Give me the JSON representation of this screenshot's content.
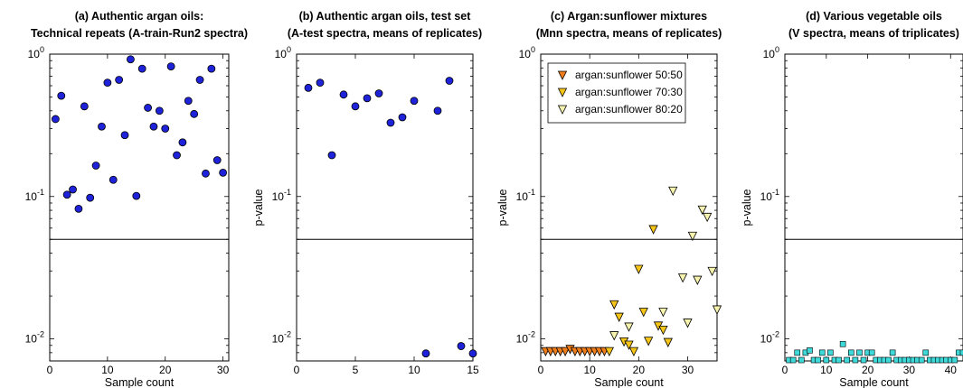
{
  "chart_data": [
    {
      "type": "scatter",
      "title_line1": "(a) Authentic argan oils:",
      "title_line2": "Technical repeats (A-train-Run2 spectra)",
      "xlabel": "Sample count",
      "ylabel": "",
      "xlim": [
        0,
        31
      ],
      "xticks": [
        0,
        10,
        20,
        30
      ],
      "ylim": [
        0.007,
        1
      ],
      "yscale": "log",
      "yticks": [
        {
          "v": 1,
          "label": "10^0"
        },
        {
          "v": 0.1,
          "label": "10^-1"
        },
        {
          "v": 0.01,
          "label": "10^-2"
        }
      ],
      "threshold": 0.05,
      "legend": [],
      "series": [
        {
          "marker": "circle",
          "color": "#1e22d8",
          "x": [
            1,
            2,
            3,
            4,
            5,
            6,
            7,
            8,
            9,
            10,
            11,
            12,
            13,
            14,
            15,
            16,
            17,
            18,
            19,
            20,
            21,
            22,
            23,
            24,
            25,
            26,
            27,
            28,
            29,
            30
          ],
          "y": [
            0.35,
            0.51,
            0.103,
            0.112,
            0.082,
            0.43,
            0.098,
            0.165,
            0.31,
            0.63,
            0.131,
            0.66,
            0.27,
            0.92,
            0.101,
            0.79,
            0.42,
            0.31,
            0.4,
            0.3,
            0.82,
            0.195,
            0.24,
            0.47,
            0.38,
            0.66,
            0.145,
            0.79,
            0.18,
            0.147
          ]
        }
      ]
    },
    {
      "type": "scatter",
      "title_line1": "(b) Authentic argan oils, test set",
      "title_line2": "(A-test spectra, means of replicates)",
      "xlabel": "",
      "ylabel": "p-value",
      "xlim": [
        0,
        15
      ],
      "xticks": [
        0,
        5,
        10,
        15
      ],
      "ylim": [
        0.007,
        1
      ],
      "yscale": "log",
      "yticks": [
        {
          "v": 1,
          "label": "10^0"
        },
        {
          "v": 0.1,
          "label": "10^-1"
        },
        {
          "v": 0.01,
          "label": "10^-2"
        }
      ],
      "threshold": 0.05,
      "legend": [],
      "series": [
        {
          "marker": "circle",
          "color": "#1e22d8",
          "x": [
            1,
            2,
            3,
            4,
            5,
            6,
            7,
            8,
            9,
            10,
            11,
            12,
            13,
            14,
            15
          ],
          "y": [
            0.58,
            0.63,
            0.195,
            0.52,
            0.43,
            0.49,
            0.53,
            0.33,
            0.36,
            0.47,
            0.0079,
            0.4,
            0.65,
            0.0089,
            0.0079
          ]
        }
      ]
    },
    {
      "type": "scatter",
      "title_line1": "(c) Argan:sunflower mixtures",
      "title_line2": "(Mnn spectra, means of replicates)",
      "xlabel": "Sample count",
      "ylabel": "p-value",
      "xlim": [
        0,
        36
      ],
      "xticks": [
        0,
        10,
        20,
        30
      ],
      "ylim": [
        0.007,
        1
      ],
      "yscale": "log",
      "yticks": [
        {
          "v": 1,
          "label": "10^0"
        },
        {
          "v": 0.1,
          "label": "10^-1"
        },
        {
          "v": 0.01,
          "label": "10^-2"
        }
      ],
      "threshold": 0.05,
      "legend": [
        "argan:sunflower 50:50",
        "argan:sunflower 70:30",
        "argan:sunflower 80:20"
      ],
      "series": [
        {
          "name": "argan:sunflower 50:50",
          "marker": "triangle-down",
          "color": "#ef7d1a",
          "x": [
            1,
            2,
            3,
            4,
            5,
            6,
            7,
            8,
            9,
            10,
            11,
            12,
            13
          ],
          "y": [
            0.0082,
            0.0082,
            0.0082,
            0.0082,
            0.0082,
            0.0085,
            0.0082,
            0.0082,
            0.0082,
            0.0082,
            0.0082,
            0.0082,
            0.0082
          ]
        },
        {
          "name": "argan:sunflower 70:30",
          "marker": "triangle-down",
          "color": "#f5c518",
          "x": [
            14,
            15,
            16,
            17,
            18,
            19,
            20,
            21,
            22,
            23,
            24,
            25,
            26
          ],
          "y": [
            0.0082,
            0.0175,
            0.0143,
            0.0096,
            0.0091,
            0.0082,
            0.031,
            0.0155,
            0.0097,
            0.059,
            0.0124,
            0.0116,
            0.0095
          ]
        },
        {
          "name": "argan:sunflower 80:20",
          "marker": "triangle-down",
          "color": "#f6f3ae",
          "x": [
            15,
            18,
            25,
            27,
            29,
            30,
            31,
            32,
            33,
            34,
            35,
            36
          ],
          "y": [
            0.0106,
            0.0122,
            0.0155,
            0.11,
            0.027,
            0.013,
            0.053,
            0.026,
            0.081,
            0.072,
            0.03,
            0.0161
          ]
        }
      ]
    },
    {
      "type": "scatter",
      "title_line1": "(d) Various vegetable oils",
      "title_line2": "(V spectra, means of triplicates)",
      "xlabel": "Sample count",
      "ylabel": "p-value",
      "xlim": [
        0,
        43
      ],
      "xticks": [
        0,
        10,
        20,
        30,
        40
      ],
      "ylim": [
        0.007,
        1
      ],
      "yscale": "log",
      "yticks": [
        {
          "v": 1,
          "label": "10^0"
        },
        {
          "v": 0.1,
          "label": "10^-1"
        },
        {
          "v": 0.01,
          "label": "10^-2"
        }
      ],
      "threshold": 0.05,
      "legend": [],
      "series": [
        {
          "marker": "square",
          "color": "#3ed9d9",
          "x": [
            1,
            2,
            3,
            4,
            5,
            6,
            7,
            8,
            9,
            10,
            11,
            12,
            13,
            14,
            15,
            16,
            17,
            18,
            19,
            20,
            21,
            22,
            23,
            24,
            25,
            26,
            27,
            28,
            29,
            30,
            31,
            32,
            33,
            34,
            35,
            36,
            37,
            38,
            39,
            40,
            41,
            42,
            43
          ],
          "y": [
            0.0071,
            0.0071,
            0.008,
            0.0071,
            0.008,
            0.0083,
            0.0071,
            0.0071,
            0.008,
            0.0071,
            0.008,
            0.0071,
            0.0071,
            0.0092,
            0.0071,
            0.008,
            0.0071,
            0.008,
            0.0071,
            0.008,
            0.008,
            0.0071,
            0.0071,
            0.0071,
            0.0071,
            0.008,
            0.0071,
            0.0071,
            0.0071,
            0.0071,
            0.0071,
            0.0071,
            0.0071,
            0.008,
            0.0071,
            0.0071,
            0.0071,
            0.0071,
            0.0071,
            0.0071,
            0.0071,
            0.008,
            0.008
          ]
        }
      ]
    }
  ]
}
